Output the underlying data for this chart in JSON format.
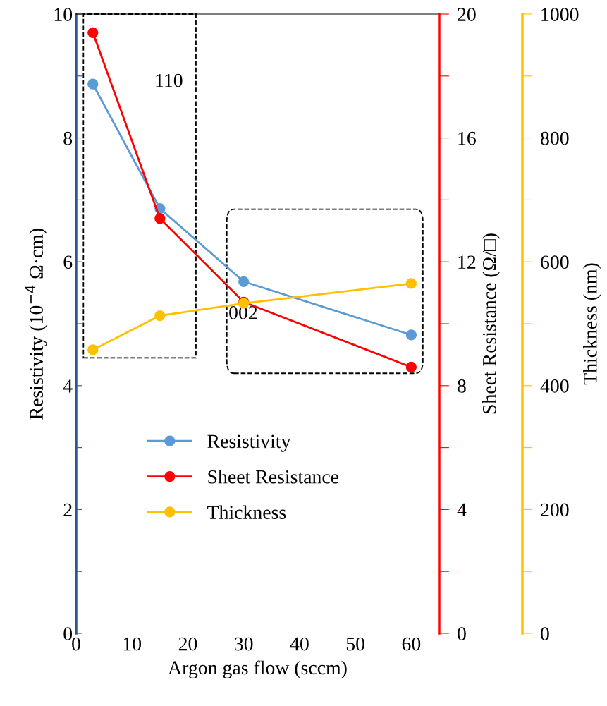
{
  "chart_data": {
    "type": "line",
    "xlabel": "Argon gas flow (sccm)",
    "ylabel": "Resistivity (10$^{−4}$ Ω·cm)",
    "y2label": "Sheet Resistance (Ω/□)",
    "y3label": "Thickness (nm)",
    "x": [
      3,
      15,
      30,
      60
    ],
    "xlim": [
      0,
      65
    ],
    "xticks": [
      0,
      10,
      20,
      30,
      40,
      50,
      60
    ],
    "ylim": [
      0,
      10
    ],
    "yticks": [
      0,
      {
        "value": 1,
        "label": null
      },
      2,
      {
        "value": 3,
        "label": null
      },
      4,
      {
        "value": 5,
        "label": null
      },
      6,
      {
        "value": 7,
        "label": null
      },
      8,
      {
        "value": 9,
        "label": null
      },
      10
    ],
    "y2lim": [
      0,
      20
    ],
    "y2ticks": [
      0,
      {
        "value": 2,
        "label": null
      },
      4,
      {
        "value": 6,
        "label": null
      },
      8,
      {
        "value": 10,
        "label": null
      },
      12,
      {
        "value": 14,
        "label": null
      },
      16,
      {
        "value": 18,
        "label": null
      },
      20
    ],
    "y3lim": [
      0,
      1000
    ],
    "y3ticks": [
      0,
      {
        "value": 100,
        "label": null
      },
      200,
      {
        "value": 300,
        "label": null
      },
      400,
      {
        "value": 500,
        "label": null
      },
      600,
      {
        "value": 700,
        "label": null
      },
      800,
      {
        "value": 900,
        "label": null
      },
      1000
    ],
    "series": [
      {
        "name": "Resistivity",
        "color": "#5b9bd5",
        "values": [
          8.87,
          6.86,
          5.68,
          4.82
        ]
      },
      {
        "name": "Sheet Resistance",
        "color": "#ff0000",
        "axis": "y2",
        "values": [
          19.4,
          13.4,
          10.7,
          8.6
        ]
      },
      {
        "name": "Thickness",
        "color": "#ffc000",
        "axis": "y3",
        "values": [
          458,
          513,
          533,
          565
        ]
      }
    ],
    "annotations": [
      "110",
      "002"
    ],
    "marker": "circle",
    "line_style": "solid",
    "legend": "center left",
    "grid": false
  }
}
